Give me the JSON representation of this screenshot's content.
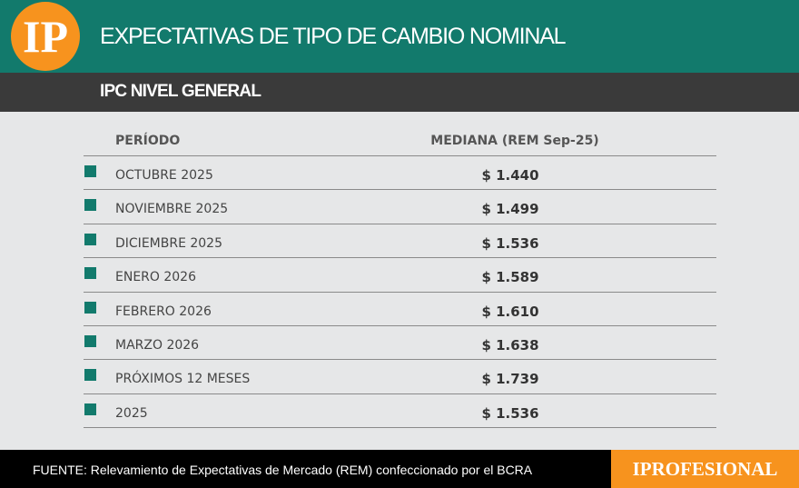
{
  "header": {
    "logo": "IP",
    "title": "EXPECTATIVAS DE TIPO DE CAMBIO NOMINAL",
    "subtitle": "IPC NIVEL GENERAL"
  },
  "table": {
    "columns": [
      "PERÍODO",
      "MEDIANA (REM Sep-25)"
    ],
    "rows": [
      [
        "OCTUBRE 2025",
        "$ 1.440"
      ],
      [
        "NOVIEMBRE 2025",
        "$ 1.499"
      ],
      [
        "DICIEMBRE 2025",
        "$ 1.536"
      ],
      [
        "ENERO 2026",
        "$ 1.589"
      ],
      [
        "FEBRERO 2026",
        "$ 1.610"
      ],
      [
        "MARZO 2026",
        "$ 1.638"
      ],
      [
        "PRÓXIMOS 12 MESES",
        "$ 1.739"
      ],
      [
        "2025",
        "$ 1.536"
      ]
    ]
  },
  "footer": {
    "source": "FUENTE: Relevamiento de Expectativas de Mercado (REM) confeccionado por el BCRA",
    "brand": "IPROFESIONAL"
  }
}
